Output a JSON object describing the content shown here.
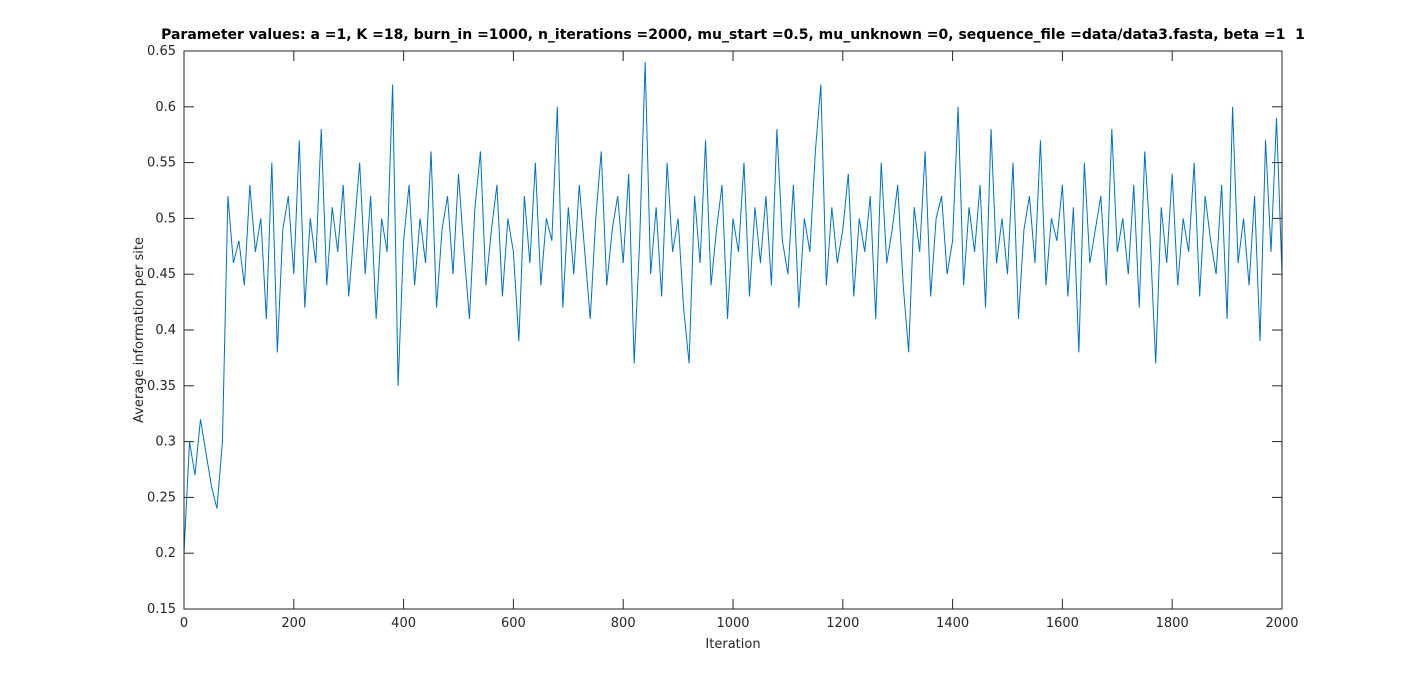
{
  "chart_data": {
    "type": "line",
    "title": "Parameter values: a =1, K =18, burn_in =1000, n_iterations =2000, mu_start =0.5, mu_unknown =0, sequence_file =data/data3.fasta, beta =1  1",
    "x_label": "Iteration",
    "y_label": "Average information per site",
    "xlim": [
      0,
      2000
    ],
    "xticks": [
      0,
      200,
      400,
      600,
      800,
      1000,
      1200,
      1400,
      1600,
      1800,
      2000
    ],
    "ylim": [
      0.15,
      0.65
    ],
    "yticks": [
      0.15,
      0.2,
      0.25,
      0.3,
      0.35,
      0.4,
      0.45,
      0.5,
      0.55,
      0.6,
      0.65
    ],
    "grid": false,
    "x": [
      0,
      10,
      20,
      30,
      40,
      50,
      60,
      70,
      80,
      90,
      100,
      110,
      120,
      130,
      140,
      150,
      160,
      170,
      180,
      190,
      200,
      210,
      220,
      230,
      240,
      250,
      260,
      270,
      280,
      290,
      300,
      310,
      320,
      330,
      340,
      350,
      360,
      370,
      380,
      390,
      400,
      410,
      420,
      430,
      440,
      450,
      460,
      470,
      480,
      490,
      500,
      510,
      520,
      530,
      540,
      550,
      560,
      570,
      580,
      590,
      600,
      610,
      620,
      630,
      640,
      650,
      660,
      670,
      680,
      690,
      700,
      710,
      720,
      730,
      740,
      750,
      760,
      770,
      780,
      790,
      800,
      810,
      820,
      830,
      840,
      850,
      860,
      870,
      880,
      890,
      900,
      910,
      920,
      930,
      940,
      950,
      960,
      970,
      980,
      990,
      1000,
      1010,
      1020,
      1030,
      1040,
      1050,
      1060,
      1070,
      1080,
      1090,
      1100,
      1110,
      1120,
      1130,
      1140,
      1150,
      1160,
      1170,
      1180,
      1190,
      1200,
      1210,
      1220,
      1230,
      1240,
      1250,
      1260,
      1270,
      1280,
      1290,
      1300,
      1310,
      1320,
      1330,
      1340,
      1350,
      1360,
      1370,
      1380,
      1390,
      1400,
      1410,
      1420,
      1430,
      1440,
      1450,
      1460,
      1470,
      1480,
      1490,
      1500,
      1510,
      1520,
      1530,
      1540,
      1550,
      1560,
      1570,
      1580,
      1590,
      1600,
      1610,
      1620,
      1630,
      1640,
      1650,
      1660,
      1670,
      1680,
      1690,
      1700,
      1710,
      1720,
      1730,
      1740,
      1750,
      1760,
      1770,
      1780,
      1790,
      1800,
      1810,
      1820,
      1830,
      1840,
      1850,
      1860,
      1870,
      1880,
      1890,
      1900,
      1910,
      1920,
      1930,
      1940,
      1950,
      1960,
      1970,
      1980,
      1990,
      2000
    ],
    "series": [
      {
        "color": "#0072bd",
        "values": [
          0.2,
          0.3,
          0.27,
          0.32,
          0.29,
          0.26,
          0.24,
          0.3,
          0.52,
          0.46,
          0.48,
          0.44,
          0.53,
          0.47,
          0.5,
          0.41,
          0.55,
          0.38,
          0.49,
          0.52,
          0.45,
          0.57,
          0.42,
          0.5,
          0.46,
          0.58,
          0.44,
          0.51,
          0.47,
          0.53,
          0.43,
          0.49,
          0.55,
          0.45,
          0.52,
          0.41,
          0.5,
          0.47,
          0.62,
          0.35,
          0.48,
          0.53,
          0.44,
          0.5,
          0.46,
          0.56,
          0.42,
          0.49,
          0.52,
          0.45,
          0.54,
          0.47,
          0.41,
          0.51,
          0.56,
          0.44,
          0.49,
          0.53,
          0.43,
          0.5,
          0.47,
          0.39,
          0.52,
          0.46,
          0.55,
          0.44,
          0.5,
          0.48,
          0.6,
          0.42,
          0.51,
          0.45,
          0.53,
          0.47,
          0.41,
          0.5,
          0.56,
          0.44,
          0.49,
          0.52,
          0.46,
          0.54,
          0.37,
          0.48,
          0.64,
          0.45,
          0.51,
          0.43,
          0.55,
          0.47,
          0.5,
          0.42,
          0.37,
          0.52,
          0.46,
          0.57,
          0.44,
          0.49,
          0.53,
          0.41,
          0.5,
          0.47,
          0.55,
          0.43,
          0.51,
          0.46,
          0.52,
          0.44,
          0.58,
          0.48,
          0.45,
          0.53,
          0.42,
          0.5,
          0.47,
          0.56,
          0.62,
          0.44,
          0.51,
          0.46,
          0.49,
          0.54,
          0.43,
          0.5,
          0.47,
          0.52,
          0.41,
          0.55,
          0.46,
          0.49,
          0.53,
          0.44,
          0.38,
          0.51,
          0.47,
          0.56,
          0.43,
          0.5,
          0.52,
          0.45,
          0.48,
          0.6,
          0.44,
          0.51,
          0.47,
          0.53,
          0.42,
          0.58,
          0.46,
          0.5,
          0.45,
          0.55,
          0.41,
          0.49,
          0.52,
          0.46,
          0.57,
          0.44,
          0.5,
          0.48,
          0.53,
          0.43,
          0.51,
          0.38,
          0.55,
          0.46,
          0.49,
          0.52,
          0.44,
          0.58,
          0.47,
          0.5,
          0.45,
          0.53,
          0.42,
          0.56,
          0.48,
          0.37,
          0.51,
          0.46,
          0.54,
          0.44,
          0.5,
          0.47,
          0.55,
          0.43,
          0.52,
          0.48,
          0.45,
          0.53,
          0.41,
          0.6,
          0.46,
          0.5,
          0.44,
          0.52,
          0.39,
          0.57,
          0.47,
          0.59,
          0.45
        ]
      }
    ]
  }
}
